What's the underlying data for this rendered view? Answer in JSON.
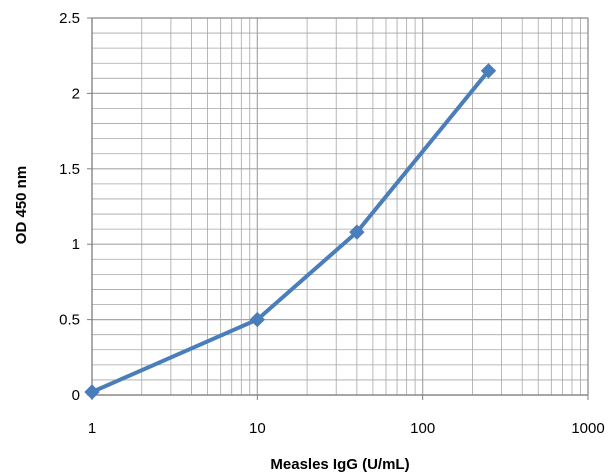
{
  "chart_data": {
    "type": "line",
    "title": "",
    "xlabel": "Measles IgG (U/mL)",
    "ylabel": "OD 450 nm",
    "x_scale": "log",
    "xlim": [
      1,
      1000
    ],
    "ylim": [
      0,
      2.5
    ],
    "x_ticks": [
      1,
      10,
      100,
      1000
    ],
    "x_tick_labels": [
      "1",
      "10",
      "100",
      "1000"
    ],
    "y_ticks": [
      0,
      0.5,
      1,
      1.5,
      2,
      2.5
    ],
    "y_tick_labels": [
      "0",
      "0.5",
      "1",
      "1.5",
      "2",
      "2.5"
    ],
    "grid": true,
    "legend": "none",
    "series": [
      {
        "color": "#4a7ebb",
        "marker": "diamond",
        "points": [
          {
            "x": 1,
            "y": 0.02
          },
          {
            "x": 10,
            "y": 0.5
          },
          {
            "x": 40,
            "y": 1.08
          },
          {
            "x": 250,
            "y": 2.15
          }
        ]
      }
    ],
    "colors": {
      "grid": "#a6a6a6",
      "axis": "#7f7f7f",
      "series": "#4a7ebb"
    }
  }
}
